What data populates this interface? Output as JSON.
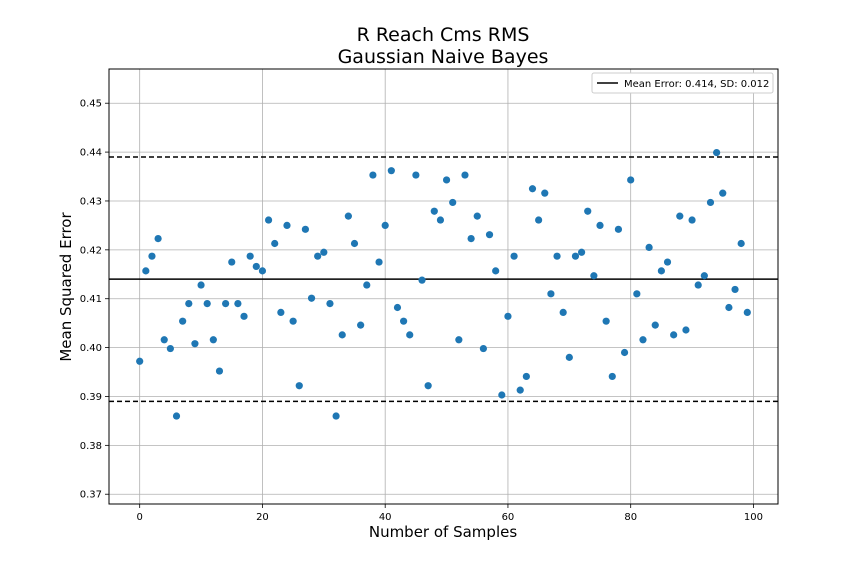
{
  "chart_data": {
    "type": "scatter",
    "title": "R Reach Cms RMS",
    "subtitle": "Gaussian Naive Bayes",
    "xlabel": "Number of Samples",
    "ylabel": "Mean Squared Error",
    "xlim": [
      -5,
      104
    ],
    "ylim": [
      0.368,
      0.457
    ],
    "xticks": [
      0,
      20,
      40,
      60,
      80,
      100
    ],
    "xtick_labels": [
      "0",
      "20",
      "40",
      "60",
      "80",
      "100"
    ],
    "yticks": [
      0.37,
      0.38,
      0.39,
      0.4,
      0.41,
      0.42,
      0.43,
      0.44,
      0.45
    ],
    "ytick_labels": [
      "0.37",
      "0.38",
      "0.39",
      "0.40",
      "0.41",
      "0.42",
      "0.43",
      "0.44",
      "0.45"
    ],
    "grid": true,
    "legend": {
      "placement": "top-right",
      "entries": [
        "Mean Error: 0.414, SD: 0.012"
      ]
    },
    "mean_line": 0.414,
    "sd_lines": [
      0.389,
      0.439
    ],
    "point_color": "#1f77b4",
    "line_color": "#000000",
    "points": [
      {
        "x": 0,
        "y": 0.3972
      },
      {
        "x": 1,
        "y": 0.4157
      },
      {
        "x": 2,
        "y": 0.4187
      },
      {
        "x": 3,
        "y": 0.4223
      },
      {
        "x": 4,
        "y": 0.4016
      },
      {
        "x": 5,
        "y": 0.3998
      },
      {
        "x": 6,
        "y": 0.386
      },
      {
        "x": 7,
        "y": 0.4054
      },
      {
        "x": 8,
        "y": 0.409
      },
      {
        "x": 9,
        "y": 0.4008
      },
      {
        "x": 10,
        "y": 0.4128
      },
      {
        "x": 11,
        "y": 0.409
      },
      {
        "x": 12,
        "y": 0.4016
      },
      {
        "x": 13,
        "y": 0.3952
      },
      {
        "x": 14,
        "y": 0.409
      },
      {
        "x": 15,
        "y": 0.4175
      },
      {
        "x": 16,
        "y": 0.409
      },
      {
        "x": 17,
        "y": 0.4064
      },
      {
        "x": 18,
        "y": 0.4187
      },
      {
        "x": 19,
        "y": 0.4166
      },
      {
        "x": 20,
        "y": 0.4157
      },
      {
        "x": 21,
        "y": 0.4261
      },
      {
        "x": 22,
        "y": 0.4213
      },
      {
        "x": 23,
        "y": 0.4072
      },
      {
        "x": 24,
        "y": 0.425
      },
      {
        "x": 25,
        "y": 0.4054
      },
      {
        "x": 26,
        "y": 0.3922
      },
      {
        "x": 27,
        "y": 0.4242
      },
      {
        "x": 28,
        "y": 0.4101
      },
      {
        "x": 29,
        "y": 0.4187
      },
      {
        "x": 30,
        "y": 0.4195
      },
      {
        "x": 31,
        "y": 0.409
      },
      {
        "x": 32,
        "y": 0.386
      },
      {
        "x": 33,
        "y": 0.4026
      },
      {
        "x": 34,
        "y": 0.4269
      },
      {
        "x": 35,
        "y": 0.4213
      },
      {
        "x": 36,
        "y": 0.4046
      },
      {
        "x": 37,
        "y": 0.4128
      },
      {
        "x": 38,
        "y": 0.4353
      },
      {
        "x": 39,
        "y": 0.4175
      },
      {
        "x": 40,
        "y": 0.425
      },
      {
        "x": 41,
        "y": 0.4362
      },
      {
        "x": 42,
        "y": 0.4082
      },
      {
        "x": 43,
        "y": 0.4054
      },
      {
        "x": 44,
        "y": 0.4026
      },
      {
        "x": 45,
        "y": 0.4353
      },
      {
        "x": 46,
        "y": 0.4138
      },
      {
        "x": 47,
        "y": 0.3922
      },
      {
        "x": 48,
        "y": 0.4279
      },
      {
        "x": 49,
        "y": 0.4261
      },
      {
        "x": 50,
        "y": 0.4343
      },
      {
        "x": 51,
        "y": 0.4297
      },
      {
        "x": 52,
        "y": 0.4016
      },
      {
        "x": 53,
        "y": 0.4353
      },
      {
        "x": 54,
        "y": 0.4223
      },
      {
        "x": 55,
        "y": 0.4269
      },
      {
        "x": 56,
        "y": 0.3998
      },
      {
        "x": 57,
        "y": 0.4231
      },
      {
        "x": 58,
        "y": 0.4157
      },
      {
        "x": 59,
        "y": 0.3903
      },
      {
        "x": 60,
        "y": 0.4064
      },
      {
        "x": 61,
        "y": 0.4187
      },
      {
        "x": 62,
        "y": 0.3913
      },
      {
        "x": 63,
        "y": 0.3941
      },
      {
        "x": 64,
        "y": 0.4325
      },
      {
        "x": 65,
        "y": 0.4261
      },
      {
        "x": 66,
        "y": 0.4316
      },
      {
        "x": 67,
        "y": 0.411
      },
      {
        "x": 68,
        "y": 0.4187
      },
      {
        "x": 69,
        "y": 0.4072
      },
      {
        "x": 70,
        "y": 0.398
      },
      {
        "x": 71,
        "y": 0.4187
      },
      {
        "x": 72,
        "y": 0.4195
      },
      {
        "x": 73,
        "y": 0.4279
      },
      {
        "x": 74,
        "y": 0.4147
      },
      {
        "x": 75,
        "y": 0.425
      },
      {
        "x": 76,
        "y": 0.4054
      },
      {
        "x": 77,
        "y": 0.3941
      },
      {
        "x": 78,
        "y": 0.4242
      },
      {
        "x": 79,
        "y": 0.399
      },
      {
        "x": 80,
        "y": 0.4343
      },
      {
        "x": 81,
        "y": 0.411
      },
      {
        "x": 82,
        "y": 0.4016
      },
      {
        "x": 83,
        "y": 0.4205
      },
      {
        "x": 84,
        "y": 0.4046
      },
      {
        "x": 85,
        "y": 0.4157
      },
      {
        "x": 86,
        "y": 0.4175
      },
      {
        "x": 87,
        "y": 0.4026
      },
      {
        "x": 88,
        "y": 0.4269
      },
      {
        "x": 89,
        "y": 0.4036
      },
      {
        "x": 90,
        "y": 0.4261
      },
      {
        "x": 91,
        "y": 0.4128
      },
      {
        "x": 92,
        "y": 0.4147
      },
      {
        "x": 93,
        "y": 0.4297
      },
      {
        "x": 94,
        "y": 0.4399
      },
      {
        "x": 95,
        "y": 0.4316
      },
      {
        "x": 96,
        "y": 0.4082
      },
      {
        "x": 97,
        "y": 0.4119
      },
      {
        "x": 98,
        "y": 0.4213
      },
      {
        "x": 99,
        "y": 0.4072
      }
    ]
  }
}
